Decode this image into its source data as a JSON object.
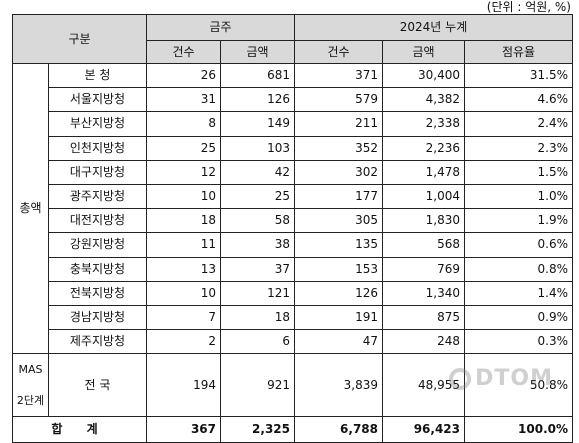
{
  "unit_note": "(단위 : 억원, %)",
  "header": {
    "category": "구분",
    "this_week": "금주",
    "cumulative": "2024년 누계",
    "count": "건수",
    "amount": "금액",
    "share": "점유율"
  },
  "groups": {
    "total_group": "총액",
    "mas_group": "MAS\n2단계"
  },
  "rows": [
    {
      "name": "본  청",
      "w_count": "26",
      "w_amount": "681",
      "c_count": "371",
      "c_amount": "30,400",
      "share": "31.5%"
    },
    {
      "name": "서울지방청",
      "w_count": "31",
      "w_amount": "126",
      "c_count": "579",
      "c_amount": "4,382",
      "share": "4.6%"
    },
    {
      "name": "부산지방청",
      "w_count": "8",
      "w_amount": "149",
      "c_count": "211",
      "c_amount": "2,338",
      "share": "2.4%"
    },
    {
      "name": "인천지방청",
      "w_count": "25",
      "w_amount": "103",
      "c_count": "352",
      "c_amount": "2,236",
      "share": "2.3%"
    },
    {
      "name": "대구지방청",
      "w_count": "12",
      "w_amount": "42",
      "c_count": "302",
      "c_amount": "1,478",
      "share": "1.5%"
    },
    {
      "name": "광주지방청",
      "w_count": "10",
      "w_amount": "25",
      "c_count": "177",
      "c_amount": "1,004",
      "share": "1.0%"
    },
    {
      "name": "대전지방청",
      "w_count": "18",
      "w_amount": "58",
      "c_count": "305",
      "c_amount": "1,830",
      "share": "1.9%"
    },
    {
      "name": "강원지방청",
      "w_count": "11",
      "w_amount": "38",
      "c_count": "135",
      "c_amount": "568",
      "share": "0.6%"
    },
    {
      "name": "충북지방청",
      "w_count": "13",
      "w_amount": "37",
      "c_count": "153",
      "c_amount": "769",
      "share": "0.8%"
    },
    {
      "name": "전북지방청",
      "w_count": "10",
      "w_amount": "121",
      "c_count": "126",
      "c_amount": "1,340",
      "share": "1.4%"
    },
    {
      "name": "경남지방청",
      "w_count": "7",
      "w_amount": "18",
      "c_count": "191",
      "c_amount": "875",
      "share": "0.9%"
    },
    {
      "name": "제주지방청",
      "w_count": "2",
      "w_amount": "6",
      "c_count": "47",
      "c_amount": "248",
      "share": "0.3%"
    }
  ],
  "mas_row": {
    "name": "전  국",
    "w_count": "194",
    "w_amount": "921",
    "c_count": "3,839",
    "c_amount": "48,955",
    "share": "50.8%"
  },
  "total_row": {
    "name": "합 계",
    "w_count": "367",
    "w_amount": "2,325",
    "c_count": "6,788",
    "c_amount": "96,423",
    "share": "100.0%"
  }
}
